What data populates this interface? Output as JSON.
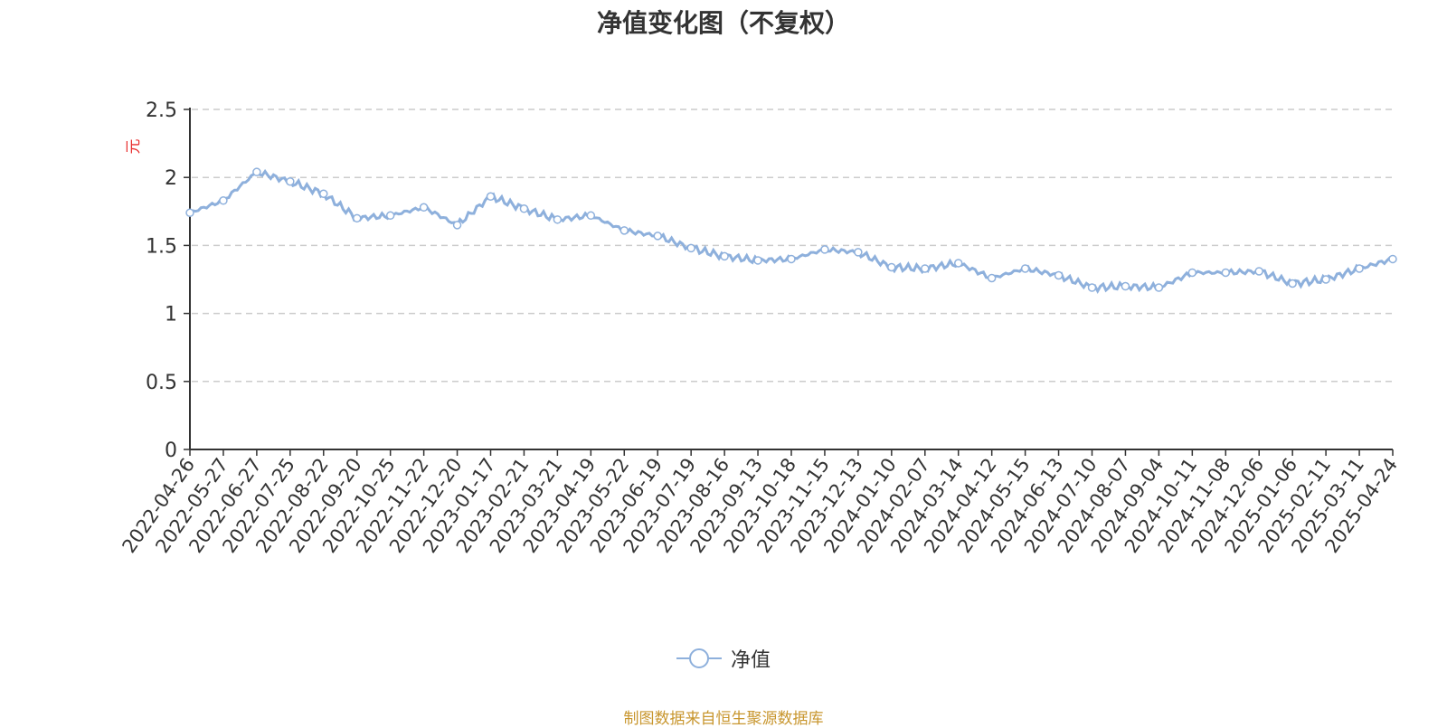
{
  "colors": {
    "line": "#8eb0dc",
    "axis": "#333333",
    "grid": "#cccccc",
    "ylabel": "#e83030",
    "source": "#c8962e"
  },
  "legend": {
    "label": "净值",
    "icon": "circle-line-marker-icon"
  },
  "source_note": "制图数据来自恒生聚源数据库",
  "chart_data": {
    "type": "line",
    "title": "净值变化图（不复权）",
    "xlabel": "",
    "ylabel": "元",
    "ylim": [
      0,
      2.5
    ],
    "yticks": [
      "0",
      "0.5",
      "1",
      "1.5",
      "2",
      "2.5"
    ],
    "grid": true,
    "legend_position": "bottom-center",
    "x": [
      "2022-04-26",
      "2022-05-27",
      "2022-06-27",
      "2022-07-25",
      "2022-08-22",
      "2022-09-20",
      "2022-10-25",
      "2022-11-22",
      "2022-12-20",
      "2023-01-17",
      "2023-02-21",
      "2023-03-21",
      "2023-04-19",
      "2023-05-22",
      "2023-06-19",
      "2023-07-19",
      "2023-08-16",
      "2023-09-13",
      "2023-10-18",
      "2023-11-15",
      "2023-12-13",
      "2024-01-10",
      "2024-02-07",
      "2024-03-14",
      "2024-04-12",
      "2024-05-15",
      "2024-06-13",
      "2024-07-10",
      "2024-08-07",
      "2024-09-04",
      "2024-10-11",
      "2024-11-08",
      "2024-12-06",
      "2025-01-06",
      "2025-02-11",
      "2025-03-11",
      "2025-04-24"
    ],
    "series": [
      {
        "name": "净值",
        "values": [
          1.74,
          1.83,
          2.04,
          1.97,
          1.88,
          1.7,
          1.72,
          1.78,
          1.65,
          1.86,
          1.77,
          1.69,
          1.72,
          1.61,
          1.57,
          1.48,
          1.42,
          1.39,
          1.4,
          1.47,
          1.45,
          1.34,
          1.33,
          1.37,
          1.26,
          1.33,
          1.28,
          1.19,
          1.2,
          1.19,
          1.3,
          1.3,
          1.31,
          1.22,
          1.25,
          1.33,
          1.4
        ]
      }
    ]
  }
}
